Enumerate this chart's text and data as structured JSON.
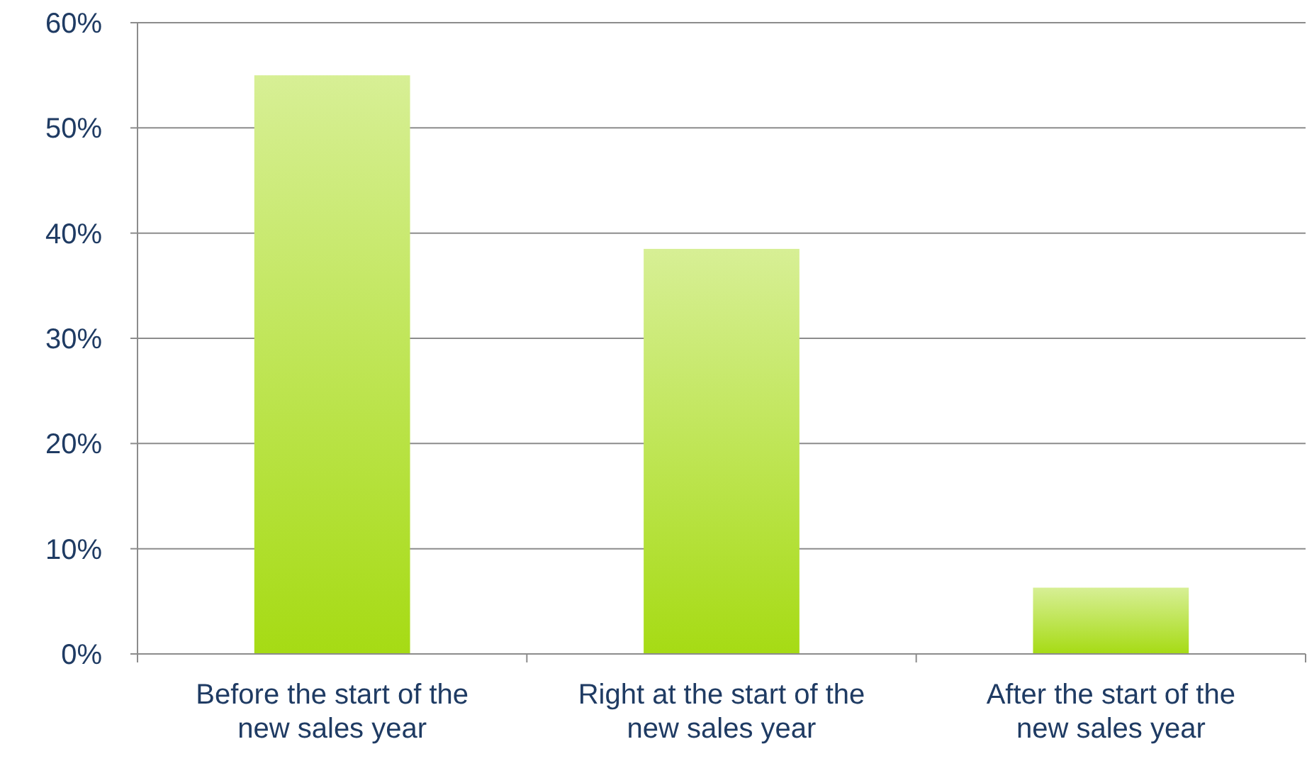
{
  "chart_data": {
    "type": "bar",
    "categories": [
      "Before the start of the new sales year",
      "Right at the start of the new sales year",
      "After the start of the new sales year"
    ],
    "values": [
      55,
      38.5,
      6.3
    ],
    "color": "#a6db14",
    "ylim": [
      0,
      60
    ],
    "yticks": [
      {
        "value": 0,
        "label": "0%"
      },
      {
        "value": 10,
        "label": "10%"
      },
      {
        "value": 20,
        "label": "20%"
      },
      {
        "value": 30,
        "label": "30%"
      },
      {
        "value": 40,
        "label": "40%"
      },
      {
        "value": 50,
        "label": "50%"
      },
      {
        "value": 60,
        "label": "60%"
      }
    ],
    "grid": "y"
  }
}
